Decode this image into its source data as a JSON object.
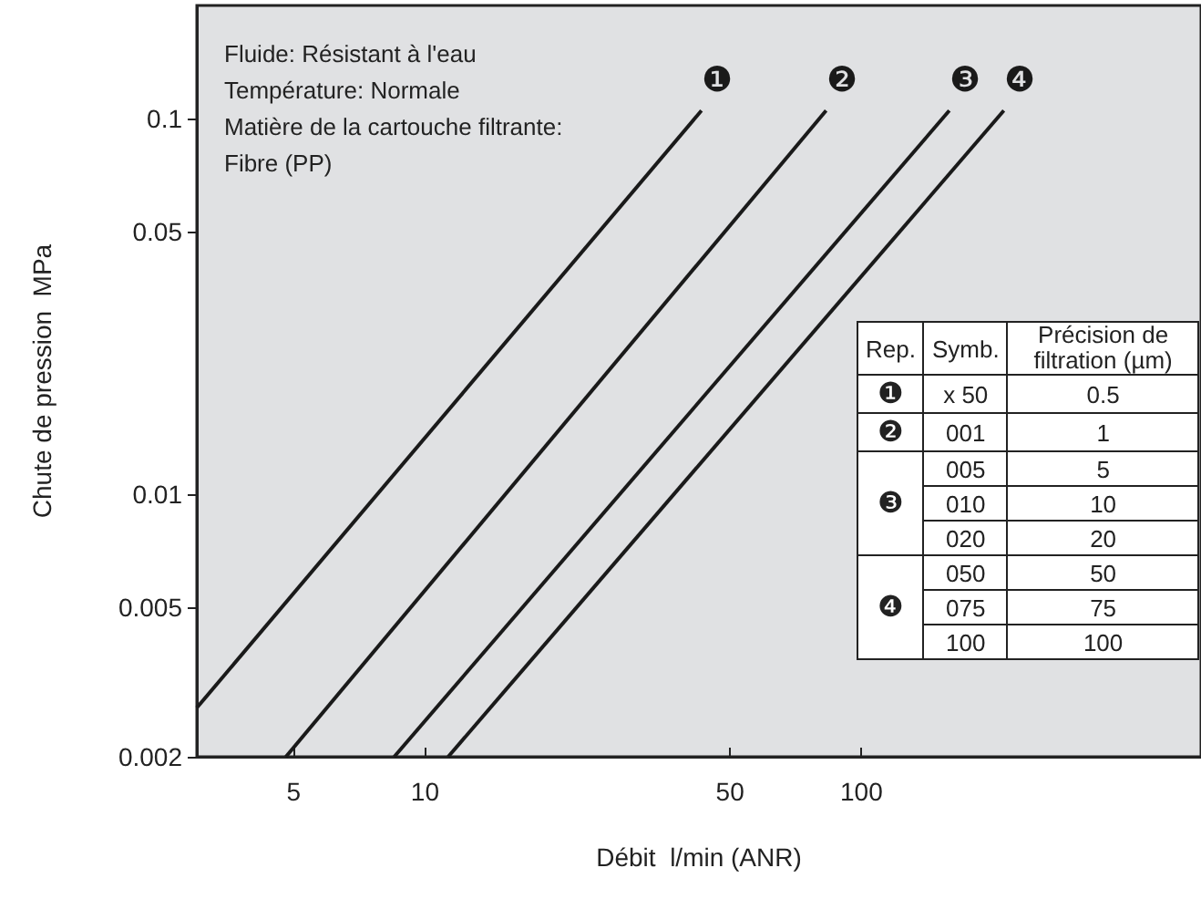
{
  "chart_data": {
    "type": "line",
    "xlabel": "Débit  l/min (ANR)",
    "ylabel": "Chute de pression  MPa",
    "log": "xy",
    "grid": false,
    "marker": "none",
    "line_style": "solid",
    "xlim": [
      3,
      600
    ],
    "xticks": [
      5,
      10,
      50,
      100
    ],
    "ylim": [
      0.002,
      0.2
    ],
    "yticks": [
      0.002,
      0.005,
      0.01,
      0.05,
      0.1
    ],
    "series": [
      {
        "name": "❶",
        "color": "#1a1a1a",
        "x": [
          3,
          43
        ],
        "values": [
          0.0027,
          0.105
        ]
      },
      {
        "name": "❷",
        "color": "#1a1a1a",
        "x": [
          4.8,
          83
        ],
        "values": [
          0.002,
          0.105
        ]
      },
      {
        "name": "❸",
        "color": "#1a1a1a",
        "x": [
          8.5,
          159
        ],
        "values": [
          0.002,
          0.105
        ]
      },
      {
        "name": "❹",
        "color": "#1a1a1a",
        "x": [
          11.3,
          212
        ],
        "values": [
          0.002,
          0.105
        ]
      }
    ],
    "annotations": [
      "Fluide: Résistant à l'eau",
      "Température: Normale",
      "Matière de la cartouche filtrante:",
      "Fibre  (PP)",
      "Rep.",
      "Symb.",
      "Précision de filtration (µm)",
      "❶",
      "x 50",
      "0.5",
      "❷",
      "001",
      "1",
      "❸",
      "005",
      "5",
      "010",
      "10",
      "020",
      "20",
      "❹",
      "050",
      "50",
      "075",
      "75",
      "100",
      "100"
    ]
  }
}
